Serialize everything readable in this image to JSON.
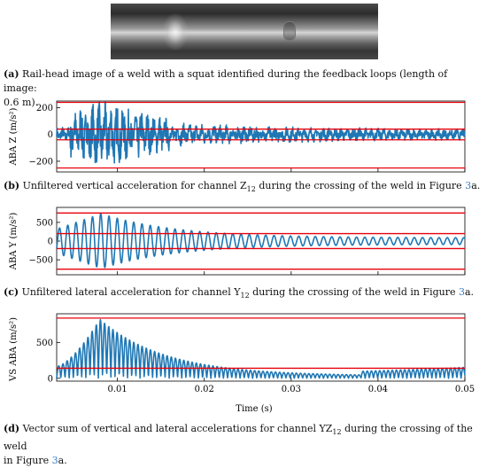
{
  "captions": {
    "a": {
      "letter": "(a)",
      "text": " Rail-head image of a weld with a squat identified during the feedback loops (length of image:",
      "text2": "0.6 m)."
    },
    "b": {
      "letter": "(b)",
      "text": " Unfiltered vertical acceleration for channel Z",
      "sub": "12",
      "text2": " during the crossing of the weld in Figure ",
      "ref": "3",
      "text3": "a."
    },
    "c": {
      "letter": "(c)",
      "text": " Unfiltered lateral acceleration for channel Y",
      "sub": "12",
      "text2": " during the crossing of the weld in Figure ",
      "ref": "3",
      "text3": "a."
    },
    "d": {
      "letter": "(d)",
      "text": " Vector sum of vertical and lateral accelerations for channel YZ",
      "sub": "12",
      "text2": " during the crossing of the weld",
      "text3": "in Figure ",
      "ref": "3",
      "text4": "a."
    }
  },
  "chart_data": [
    {
      "type": "line",
      "ylabel": "ABA Z (m/s²)",
      "xlim": [
        0.003,
        0.05
      ],
      "ylim": [
        -280,
        250
      ],
      "yticks": [
        -200,
        0,
        200
      ],
      "ytick_labels": [
        "−200",
        "0",
        "200"
      ],
      "thresholds": [
        240,
        40,
        -40,
        -250
      ],
      "series": [
        {
          "color": "#1f77b4",
          "shape": "impulsive-noise",
          "peak": 220,
          "peak_time": 0.0085
        }
      ]
    },
    {
      "type": "line",
      "ylabel": "ABA Y (m/s²)",
      "xlim": [
        0.003,
        0.05
      ],
      "ylim": [
        -900,
        900
      ],
      "yticks": [
        -500,
        0,
        500
      ],
      "ytick_labels": [
        "−500",
        "0",
        "500"
      ],
      "thresholds": [
        750,
        200,
        -200,
        -750
      ],
      "series": [
        {
          "color": "#1f77b4",
          "shape": "decaying-oscillation",
          "peak": 720,
          "peak_time": 0.008,
          "period": 0.00095
        }
      ]
    },
    {
      "type": "line",
      "ylabel": "VS ABA (m/s²)",
      "xlabel": "Time (s)",
      "xlim": [
        0.003,
        0.05
      ],
      "ylim": [
        -40,
        900
      ],
      "yticks": [
        0,
        500
      ],
      "ytick_labels": [
        "0",
        "500"
      ],
      "xticks": [
        0.01,
        0.02,
        0.03,
        0.04,
        0.05
      ],
      "xtick_labels": [
        "0.01",
        "0.02",
        "0.03",
        "0.04",
        "0.05"
      ],
      "thresholds": [
        840,
        140
      ],
      "series": [
        {
          "color": "#1f77b4",
          "shape": "rectified-decaying-oscillation",
          "peak": 830,
          "peak_time": 0.008,
          "period": 0.00048
        }
      ]
    }
  ]
}
